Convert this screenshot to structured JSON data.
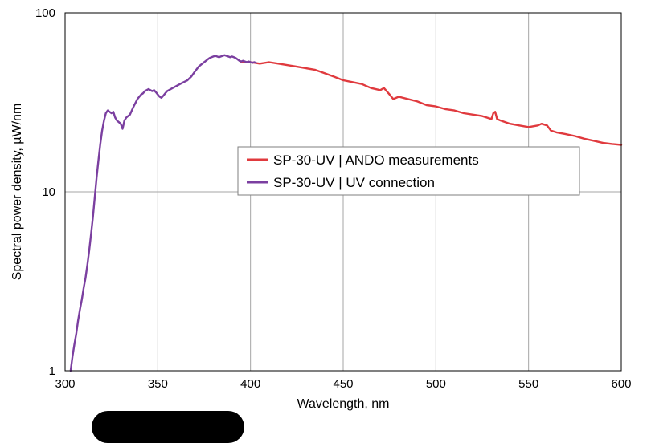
{
  "chart_data": {
    "type": "line",
    "xlabel": "Wavelength, nm",
    "ylabel": "Spectral power density, µW/nm",
    "xlim": [
      300,
      600
    ],
    "ylim": [
      1,
      100
    ],
    "yscale": "log",
    "xticks": [
      300,
      350,
      400,
      450,
      500,
      550,
      600
    ],
    "yticks": [
      1,
      10,
      100
    ],
    "ytick_labels": [
      "1",
      "10",
      "100"
    ],
    "grid": true,
    "legend_position": "center-right",
    "series": [
      {
        "name": "SP-30-UV | ANDO measurements",
        "color": "#e03a3e",
        "x": [
          395,
          400,
          405,
          410,
          415,
          420,
          425,
          430,
          435,
          440,
          445,
          450,
          455,
          460,
          465,
          470,
          472,
          475,
          477,
          480,
          485,
          490,
          495,
          500,
          505,
          510,
          515,
          520,
          525,
          530,
          531,
          532,
          533,
          535,
          540,
          545,
          550,
          555,
          557,
          560,
          562,
          565,
          570,
          575,
          580,
          585,
          590,
          595,
          600
        ],
        "y": [
          53,
          53,
          52,
          53,
          52,
          51,
          50,
          49,
          48,
          46,
          44,
          42,
          41,
          40,
          38,
          37,
          38,
          35,
          33,
          34,
          33,
          32,
          30.5,
          30,
          29,
          28.5,
          27.5,
          27,
          26.5,
          25.5,
          27.5,
          28,
          25.5,
          25,
          24,
          23.5,
          23,
          23.5,
          24,
          23.5,
          22,
          21.5,
          21,
          20.5,
          19.8,
          19.3,
          18.8,
          18.5,
          18.3
        ]
      },
      {
        "name": "SP-30-UV | UV connection",
        "color": "#7b3fa0",
        "x": [
          303,
          304,
          305,
          306,
          307,
          308,
          309,
          310,
          311,
          312,
          313,
          314,
          315,
          316,
          317,
          318,
          319,
          320,
          321,
          322,
          323,
          324,
          325,
          326,
          327,
          328,
          329,
          330,
          331,
          332,
          333,
          334,
          335,
          336,
          337,
          338,
          339,
          340,
          341,
          342,
          343,
          344,
          345,
          346,
          347,
          348,
          349,
          350,
          351,
          352,
          353,
          354,
          355,
          356,
          357,
          358,
          359,
          360,
          361,
          362,
          363,
          364,
          365,
          366,
          367,
          368,
          369,
          370,
          371,
          372,
          373,
          374,
          375,
          376,
          377,
          378,
          379,
          380,
          381,
          382,
          383,
          384,
          385,
          386,
          387,
          388,
          389,
          390,
          391,
          392,
          393,
          394,
          395,
          396,
          397,
          398,
          399,
          400,
          401,
          402,
          403
        ],
        "y": [
          1.0,
          1.2,
          1.4,
          1.6,
          1.9,
          2.2,
          2.5,
          2.9,
          3.3,
          3.9,
          4.7,
          5.8,
          7.2,
          9.3,
          12,
          15,
          18.5,
          22,
          25,
          27.5,
          28.5,
          28,
          27.5,
          28,
          26,
          25,
          24.5,
          24,
          22.5,
          25,
          26,
          26.5,
          27,
          28.5,
          30,
          31.5,
          33,
          34,
          35,
          35.5,
          36.5,
          37,
          37.5,
          37,
          36.5,
          37,
          36,
          35,
          34,
          33.5,
          34.5,
          35.5,
          36.5,
          37,
          37.5,
          38,
          38.5,
          39,
          39.5,
          40,
          40.5,
          41,
          41.5,
          42,
          43,
          44,
          45.5,
          47,
          48.5,
          50,
          51,
          52,
          53,
          54,
          55,
          56,
          56.5,
          57,
          57.5,
          57,
          56.5,
          57,
          57.5,
          58,
          57.5,
          57,
          56.5,
          57,
          56.5,
          56,
          55,
          54,
          53.5,
          54,
          53.5,
          53,
          53.5,
          53,
          52.5,
          53,
          52.5
        ]
      }
    ]
  }
}
